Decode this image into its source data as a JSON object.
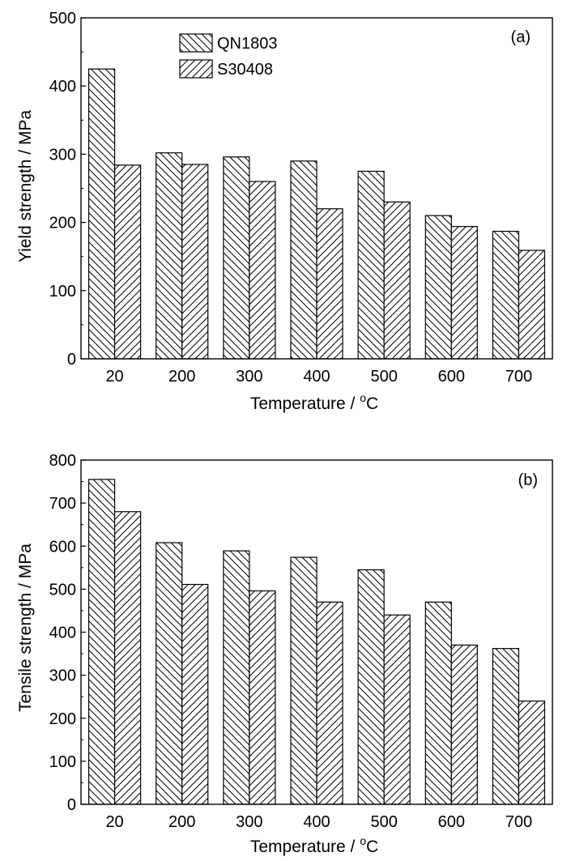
{
  "chart_data": [
    {
      "type": "bar",
      "panel_label": "(a)",
      "categories": [
        "20",
        "200",
        "300",
        "400",
        "500",
        "600",
        "700"
      ],
      "series": [
        {
          "name": "QN1803",
          "values": [
            425,
            302,
            296,
            290,
            275,
            210,
            187
          ]
        },
        {
          "name": "S30408",
          "values": [
            284,
            285,
            260,
            220,
            230,
            194,
            159
          ]
        }
      ],
      "ylabel": "Yield strength / MPa",
      "xlabel": "Temperature / ",
      "xlabel_unit_sup": "o",
      "xlabel_unit": "C",
      "ylim": [
        0,
        500
      ],
      "yticks": [
        0,
        100,
        200,
        300,
        400,
        500
      ],
      "legend": "top-center",
      "grid": false
    },
    {
      "type": "bar",
      "panel_label": "(b)",
      "categories": [
        "20",
        "200",
        "300",
        "400",
        "500",
        "600",
        "700"
      ],
      "series": [
        {
          "name": "QN1803",
          "values": [
            755,
            608,
            589,
            574,
            545,
            470,
            362
          ]
        },
        {
          "name": "S30408",
          "values": [
            680,
            511,
            496,
            470,
            440,
            370,
            240
          ]
        }
      ],
      "ylabel": "Tensile strength / MPa",
      "xlabel": "Temperature / ",
      "xlabel_unit_sup": "o",
      "xlabel_unit": "C",
      "ylim": [
        0,
        800
      ],
      "yticks": [
        0,
        100,
        200,
        300,
        400,
        500,
        600,
        700,
        800
      ],
      "legend": "none",
      "grid": false
    }
  ]
}
